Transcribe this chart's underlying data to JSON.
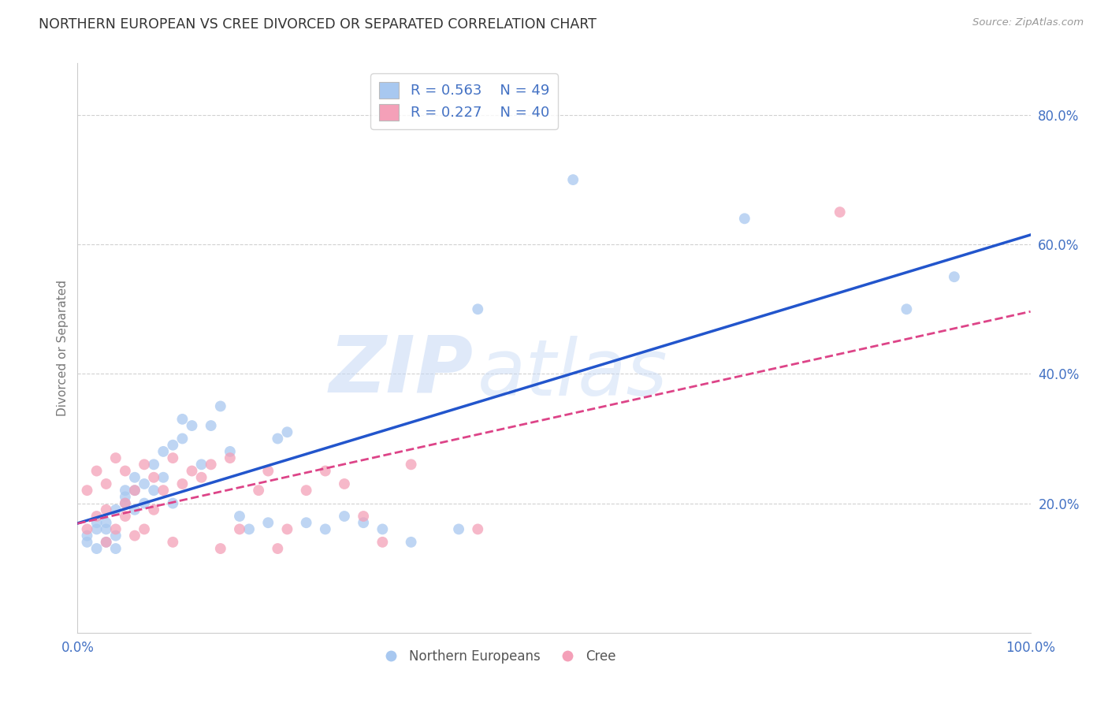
{
  "title": "NORTHERN EUROPEAN VS CREE DIVORCED OR SEPARATED CORRELATION CHART",
  "source": "Source: ZipAtlas.com",
  "ylabel": "Divorced or Separated",
  "yticks": [
    "80.0%",
    "60.0%",
    "40.0%",
    "20.0%"
  ],
  "ytick_vals": [
    0.8,
    0.6,
    0.4,
    0.2
  ],
  "xlim": [
    0.0,
    1.0
  ],
  "ylim": [
    0.0,
    0.88
  ],
  "blue_color": "#a8c8f0",
  "pink_color": "#f4a0b8",
  "blue_line_color": "#2255cc",
  "pink_line_color": "#dd4488",
  "watermark_zip": "ZIP",
  "watermark_atlas": "atlas",
  "legend_label_blue": "Northern Europeans",
  "legend_label_pink": "Cree",
  "legend_R_blue": "0.563",
  "legend_N_blue": "49",
  "legend_R_pink": "0.227",
  "legend_N_pink": "40",
  "blue_scatter_x": [
    0.01,
    0.01,
    0.02,
    0.02,
    0.02,
    0.03,
    0.03,
    0.03,
    0.04,
    0.04,
    0.04,
    0.05,
    0.05,
    0.05,
    0.06,
    0.06,
    0.06,
    0.07,
    0.07,
    0.08,
    0.08,
    0.09,
    0.09,
    0.1,
    0.1,
    0.11,
    0.11,
    0.12,
    0.13,
    0.14,
    0.15,
    0.16,
    0.17,
    0.18,
    0.2,
    0.21,
    0.22,
    0.24,
    0.26,
    0.28,
    0.3,
    0.32,
    0.35,
    0.4,
    0.42,
    0.52,
    0.7,
    0.87,
    0.92
  ],
  "blue_scatter_y": [
    0.14,
    0.15,
    0.13,
    0.16,
    0.17,
    0.14,
    0.16,
    0.17,
    0.13,
    0.15,
    0.19,
    0.22,
    0.2,
    0.21,
    0.22,
    0.19,
    0.24,
    0.2,
    0.23,
    0.22,
    0.26,
    0.24,
    0.28,
    0.2,
    0.29,
    0.3,
    0.33,
    0.32,
    0.26,
    0.32,
    0.35,
    0.28,
    0.18,
    0.16,
    0.17,
    0.3,
    0.31,
    0.17,
    0.16,
    0.18,
    0.17,
    0.16,
    0.14,
    0.16,
    0.5,
    0.7,
    0.64,
    0.5,
    0.55
  ],
  "pink_scatter_x": [
    0.01,
    0.01,
    0.02,
    0.02,
    0.03,
    0.03,
    0.03,
    0.04,
    0.04,
    0.05,
    0.05,
    0.05,
    0.06,
    0.06,
    0.07,
    0.07,
    0.08,
    0.08,
    0.09,
    0.1,
    0.1,
    0.11,
    0.12,
    0.13,
    0.14,
    0.15,
    0.16,
    0.17,
    0.19,
    0.2,
    0.21,
    0.22,
    0.24,
    0.26,
    0.28,
    0.3,
    0.32,
    0.35,
    0.42,
    0.8
  ],
  "pink_scatter_y": [
    0.16,
    0.22,
    0.18,
    0.25,
    0.14,
    0.19,
    0.23,
    0.16,
    0.27,
    0.18,
    0.2,
    0.25,
    0.15,
    0.22,
    0.16,
    0.26,
    0.19,
    0.24,
    0.22,
    0.14,
    0.27,
    0.23,
    0.25,
    0.24,
    0.26,
    0.13,
    0.27,
    0.16,
    0.22,
    0.25,
    0.13,
    0.16,
    0.22,
    0.25,
    0.23,
    0.18,
    0.14,
    0.26,
    0.16,
    0.65
  ],
  "grid_color": "#cccccc",
  "background_color": "#ffffff",
  "tick_color": "#4472c4"
}
